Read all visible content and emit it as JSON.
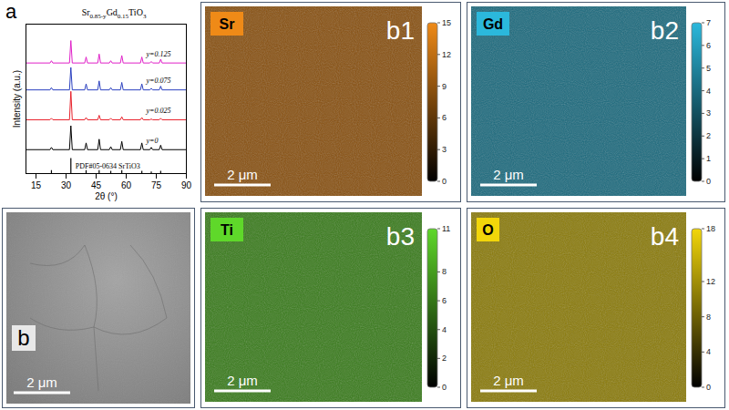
{
  "chart_data": {
    "type": "line",
    "panel_label": "a",
    "title": "Sr0.85-yGd0.15TiO3",
    "xlabel": "2θ (°)",
    "ylabel": "Intensity (a.u.)",
    "xlim": [
      10,
      90
    ],
    "xticks": [
      15,
      30,
      45,
      60,
      75,
      90
    ],
    "ylim": [
      0,
      10
    ],
    "tick_labels": "x",
    "grid": false,
    "x": [
      10,
      22,
      22.7,
      23.4,
      31.7,
      32.4,
      33.1,
      39.3,
      40,
      40.7,
      45.8,
      46.5,
      47.2,
      51.6,
      52.3,
      53,
      57.1,
      57.8,
      58.5,
      67.1,
      67.8,
      68.5,
      71.8,
      72.5,
      73.2,
      76.5,
      77.2,
      77.9,
      90
    ],
    "series": [
      {
        "name": "y=0",
        "color": "#000000",
        "values": [
          1.6,
          1.6,
          1.75,
          1.6,
          1.6,
          3.2,
          1.6,
          1.6,
          2.05,
          1.6,
          1.6,
          2.3,
          1.6,
          1.6,
          1.8,
          1.6,
          1.6,
          2.15,
          1.6,
          1.6,
          2.05,
          1.6,
          1.6,
          1.75,
          1.6,
          1.6,
          1.9,
          1.6,
          1.6
        ]
      },
      {
        "name": "y=0.025",
        "color": "#e8202a",
        "values": [
          3.6,
          3.6,
          3.7,
          3.6,
          3.6,
          5.5,
          3.6,
          3.6,
          3.75,
          3.6,
          3.6,
          3.9,
          3.6,
          3.6,
          3.7,
          3.6,
          3.6,
          3.8,
          3.6,
          3.6,
          3.75,
          3.6,
          3.6,
          3.65,
          3.6,
          3.6,
          3.7,
          3.6,
          3.6
        ]
      },
      {
        "name": "y=0.075",
        "color": "#2a3fbf",
        "values": [
          5.6,
          5.6,
          5.75,
          5.6,
          5.6,
          7.1,
          5.6,
          5.6,
          6.0,
          5.6,
          5.6,
          6.2,
          5.6,
          5.6,
          5.75,
          5.6,
          5.6,
          6.1,
          5.6,
          5.6,
          6.0,
          5.6,
          5.6,
          5.7,
          5.6,
          5.6,
          5.85,
          5.6,
          5.6
        ]
      },
      {
        "name": "y=0.125",
        "color": "#e020c8",
        "values": [
          7.4,
          7.4,
          7.55,
          7.4,
          7.4,
          8.9,
          7.4,
          7.4,
          7.8,
          7.4,
          7.4,
          8.0,
          7.4,
          7.4,
          7.55,
          7.4,
          7.4,
          7.9,
          7.4,
          7.4,
          7.8,
          7.4,
          7.4,
          7.5,
          7.4,
          7.4,
          7.65,
          7.4,
          7.4
        ]
      }
    ],
    "reference": {
      "name": "PDF#05-0634 SrTiO3",
      "color": "#000000",
      "x": [
        22.7,
        32.4,
        40,
        46.5,
        52.3,
        57.8,
        67.8,
        72.5,
        77.2
      ],
      "values": [
        0.2,
        1.0,
        0.2,
        0.2,
        0.15,
        0.2,
        0.15,
        0.1,
        0.15
      ]
    }
  },
  "figure": {
    "panels": [
      {
        "label": "b",
        "type": "image",
        "scale_bar": "2 μm"
      },
      {
        "label": "b1",
        "type": "map",
        "element": "Sr",
        "color": "#ef8a17",
        "scale_bar": "2 μm",
        "colorbar": {
          "range": [
            0,
            15
          ],
          "ticks": [
            0,
            3,
            6,
            9,
            12,
            15
          ]
        }
      },
      {
        "label": "b2",
        "type": "map",
        "element": "Gd",
        "color": "#2bb8dc",
        "scale_bar": "2 μm",
        "colorbar": {
          "range": [
            0,
            7
          ],
          "ticks": [
            0,
            1,
            2,
            3,
            4,
            5,
            6,
            7
          ]
        }
      },
      {
        "label": "b3",
        "type": "map",
        "element": "Ti",
        "color": "#5fd82a",
        "scale_bar": "2 μm",
        "colorbar": {
          "range": [
            0,
            11
          ],
          "ticks": [
            0,
            2,
            4,
            6,
            8,
            11
          ]
        }
      },
      {
        "label": "b4",
        "type": "map",
        "element": "O",
        "color": "#f2d60a",
        "scale_bar": "2 μm",
        "colorbar": {
          "range": [
            0,
            18
          ],
          "ticks": [
            0,
            4,
            8,
            12,
            18
          ]
        }
      }
    ]
  }
}
